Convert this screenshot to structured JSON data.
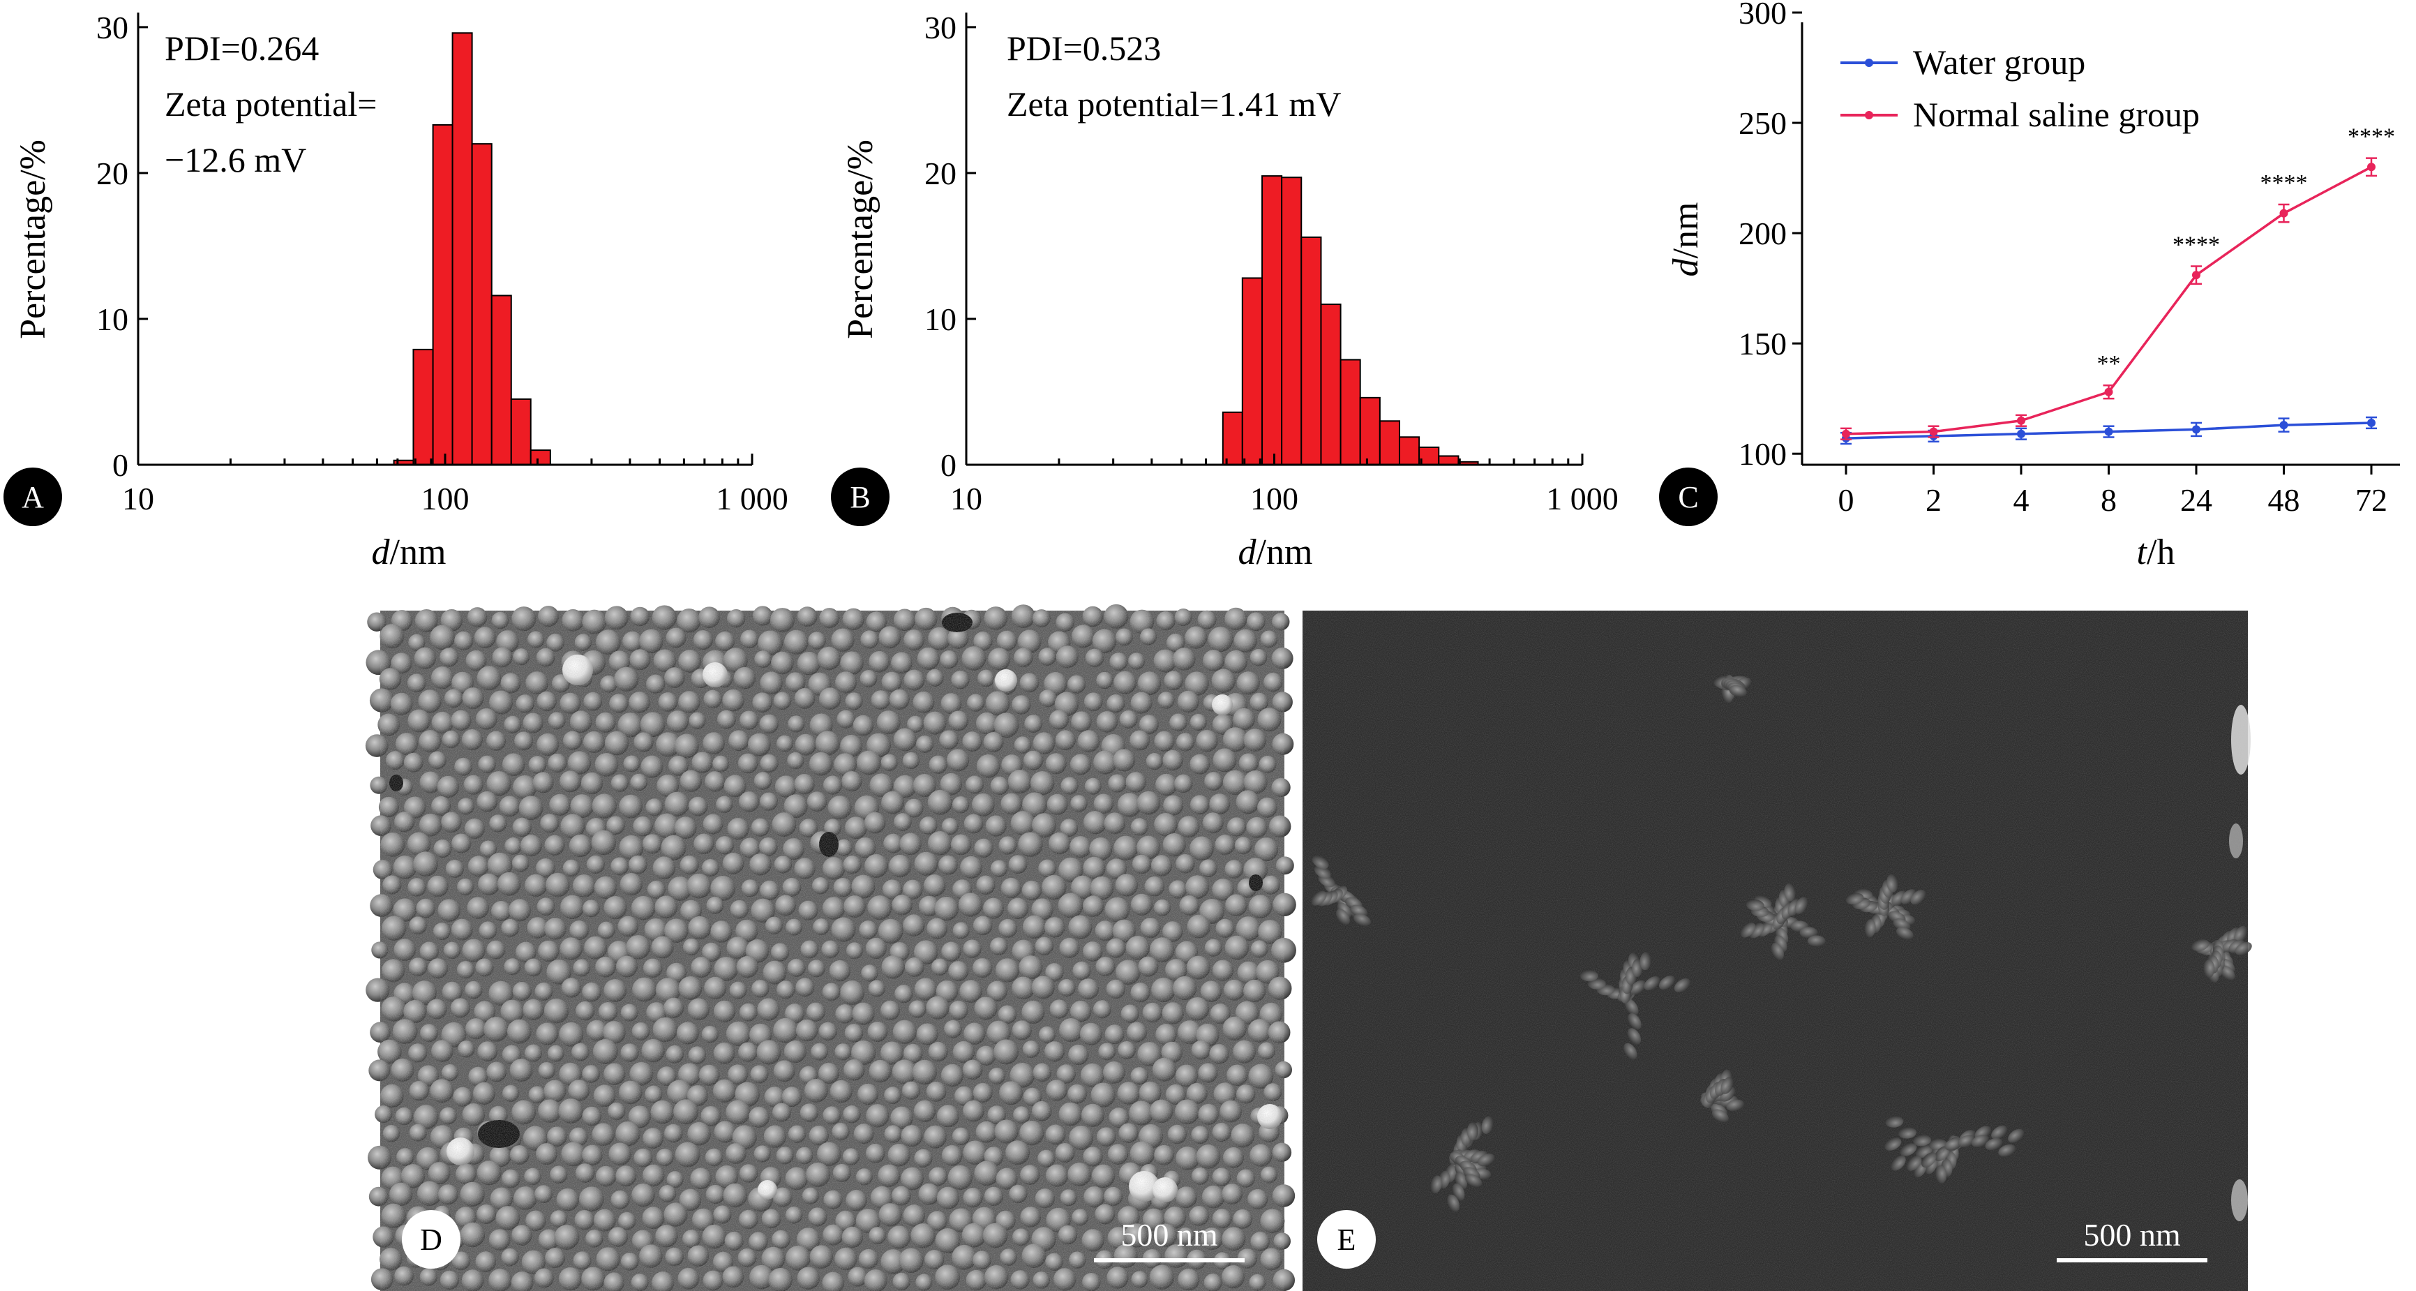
{
  "panels": {
    "A": "A",
    "B": "B",
    "C": "C",
    "D": "D",
    "E": "E"
  },
  "scale_bars": {
    "D": "500 nm",
    "E": "500 nm"
  },
  "chart_data": [
    {
      "id": "A",
      "type": "bar",
      "annotations": [
        "PDI=0.264",
        "Zeta potential=",
        "−12.6 mV"
      ],
      "xlabel_italic": "d",
      "xlabel_rest": "/nm",
      "ylabel": "Percentage/%",
      "xscale": "log",
      "xlim": [
        10,
        1000
      ],
      "ylim": [
        0,
        31
      ],
      "xticks": [
        10,
        100,
        1000
      ],
      "xtick_labels": [
        "10",
        "100",
        "1 000"
      ],
      "yticks": [
        0,
        10,
        20,
        30
      ],
      "ytick_labels": [
        "0",
        "10",
        "20",
        "30"
      ],
      "bar_edges": [
        68.1,
        78.8,
        91.3,
        105.7,
        122.4,
        141.8,
        164.2,
        190.1,
        220.2
      ],
      "values": [
        0.3,
        7.9,
        23.3,
        29.6,
        22.0,
        11.6,
        4.5,
        1.0
      ],
      "bar_color": "#ee1c24"
    },
    {
      "id": "B",
      "type": "bar",
      "annotations": [
        "PDI=0.523",
        "Zeta potential=1.41 mV"
      ],
      "xlabel_italic": "d",
      "xlabel_rest": "/nm",
      "ylabel": "Percentage/%",
      "xscale": "log",
      "xlim": [
        10,
        1000
      ],
      "ylim": [
        0,
        31
      ],
      "xticks": [
        10,
        100,
        1000
      ],
      "xtick_labels": [
        "10",
        "100",
        "1 000"
      ],
      "yticks": [
        0,
        10,
        20,
        30
      ],
      "ytick_labels": [
        "0",
        "10",
        "20",
        "30"
      ],
      "bar_edges": [
        68.1,
        78.8,
        91.3,
        105.7,
        122.4,
        141.8,
        164.2,
        190.1,
        220.2,
        255.0,
        295.3,
        342.0,
        396.1,
        458.7
      ],
      "values": [
        3.6,
        12.8,
        19.8,
        19.7,
        15.6,
        11.0,
        7.2,
        4.6,
        3.0,
        1.9,
        1.2,
        0.6,
        0.2
      ],
      "bar_color": "#ee1c24"
    },
    {
      "id": "C",
      "type": "line",
      "xlabel_italic": "t",
      "xlabel_rest": "/h",
      "ylabel_italic": "d",
      "ylabel_rest": "/nm",
      "categories": [
        "0",
        "2",
        "4",
        "8",
        "24",
        "48",
        "72"
      ],
      "ylim": [
        95,
        300
      ],
      "yticks": [
        100,
        150,
        200,
        250,
        300
      ],
      "ytick_labels": [
        "100",
        "150",
        "200",
        "250",
        "300"
      ],
      "legend_position": "top-left",
      "series": [
        {
          "name": "Water group",
          "color": "#2b4fd8",
          "values": [
            107,
            108,
            109,
            110,
            111,
            113,
            114
          ],
          "errors": [
            2.5,
            2.5,
            2.5,
            2.5,
            3,
            3,
            2.5
          ]
        },
        {
          "name": "Normal saline group",
          "color": "#e8245a",
          "values": [
            109,
            110,
            115,
            128,
            181,
            209,
            230
          ],
          "errors": [
            2.5,
            2.5,
            2.5,
            3,
            4,
            4,
            4
          ]
        }
      ],
      "significance": [
        "",
        "",
        "",
        "**",
        "****",
        "****",
        "****"
      ]
    }
  ]
}
